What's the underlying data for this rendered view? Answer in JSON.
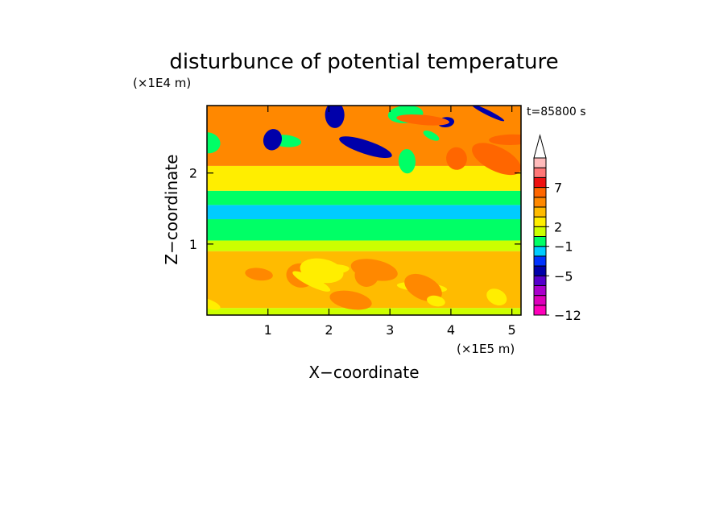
{
  "chart_data": {
    "type": "heatmap",
    "title": "disturbunce of potential temperature",
    "time_label": "t=85800 s",
    "xlabel": "X−coordinate",
    "ylabel": "Z−coordinate",
    "x_scale_label": "(×1E5 m)",
    "y_scale_label": "(×1E4 m)",
    "xlim": [
      0,
      5.15
    ],
    "ylim": [
      0,
      2.95
    ],
    "x_ticks": [
      {
        "value": 1,
        "label": "1"
      },
      {
        "value": 2,
        "label": "2"
      },
      {
        "value": 3,
        "label": "3"
      },
      {
        "value": 4,
        "label": "4"
      },
      {
        "value": 5,
        "label": "5"
      }
    ],
    "y_ticks": [
      {
        "value": 1,
        "label": "1"
      },
      {
        "value": 2,
        "label": "2"
      }
    ],
    "colorbar": {
      "levels_bottom_to_top": [
        {
          "color": "#ff00bb"
        },
        {
          "color": "#dd00bb"
        },
        {
          "color": "#aa00cc"
        },
        {
          "color": "#5500cc"
        },
        {
          "color": "#0000aa"
        },
        {
          "color": "#0033ff"
        },
        {
          "color": "#00ccff"
        },
        {
          "color": "#00ff66"
        },
        {
          "color": "#ccff00"
        },
        {
          "color": "#ffee00"
        },
        {
          "color": "#ffbb00"
        },
        {
          "color": "#ff8800"
        },
        {
          "color": "#ff6600"
        },
        {
          "color": "#ee1111"
        },
        {
          "color": "#ff7777"
        },
        {
          "color": "#ffbbbb"
        }
      ],
      "top_arrow_color": "#ffffff",
      "tick_labels": [
        {
          "level_index": 0,
          "label": "−12"
        },
        {
          "level_index": 4,
          "label": "−5"
        },
        {
          "level_index": 7,
          "label": "−1"
        },
        {
          "level_index": 9,
          "label": "2"
        },
        {
          "level_index": 13,
          "label": "7"
        }
      ]
    },
    "field_bands_by_height": [
      {
        "z": [
          0.0,
          0.1
        ],
        "dominant": "#ccff00"
      },
      {
        "z": [
          0.1,
          0.9
        ],
        "dominant": "#ffbb00",
        "mix": [
          "#ffee00",
          "#ff8800"
        ]
      },
      {
        "z": [
          0.9,
          1.05
        ],
        "dominant": "#ccff00"
      },
      {
        "z": [
          1.05,
          1.35
        ],
        "dominant": "#00ff66"
      },
      {
        "z": [
          1.35,
          1.55
        ],
        "dominant": "#00ccff"
      },
      {
        "z": [
          1.55,
          1.75
        ],
        "dominant": "#00ff66"
      },
      {
        "z": [
          1.75,
          2.1
        ],
        "dominant": "#ffee00"
      },
      {
        "z": [
          2.1,
          2.95
        ],
        "dominant": "#ff8800",
        "mix": [
          "#0000aa",
          "#00ff66",
          "#ff6600"
        ]
      }
    ]
  }
}
